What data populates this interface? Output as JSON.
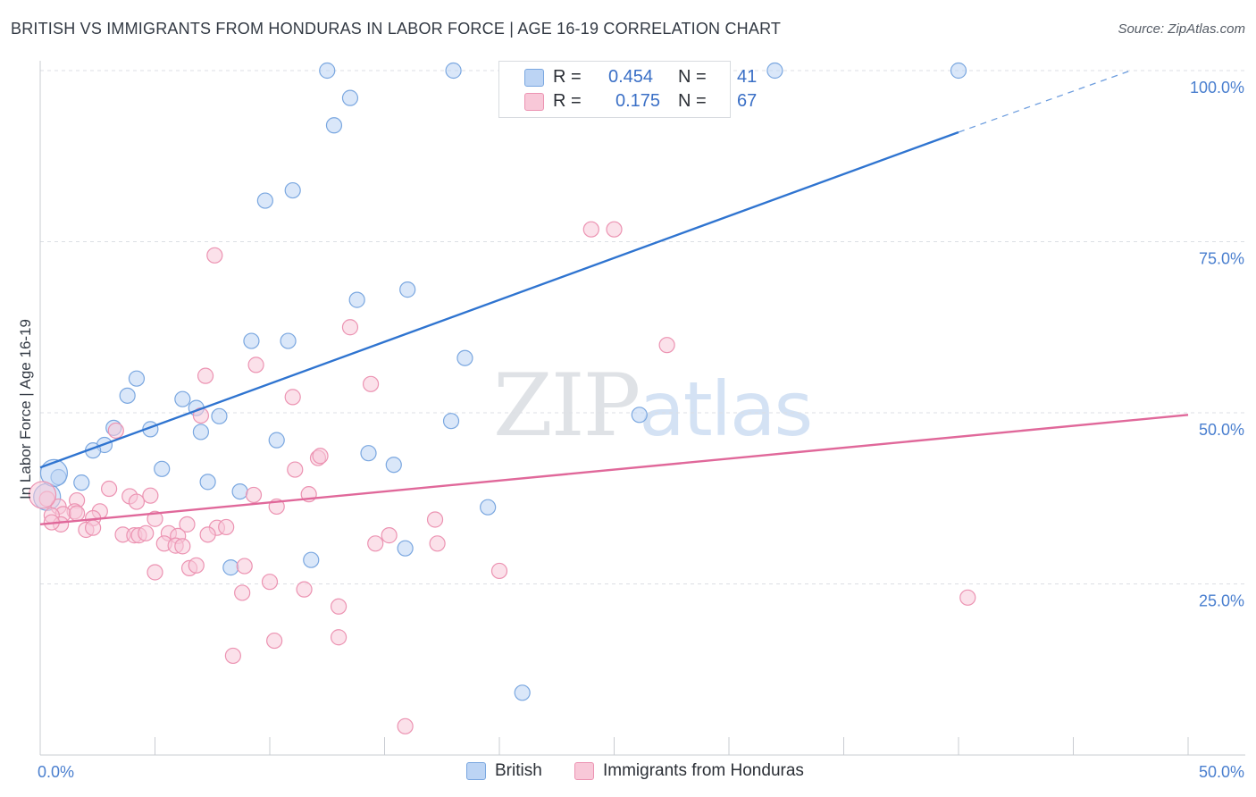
{
  "title": "BRITISH VS IMMIGRANTS FROM HONDURAS IN LABOR FORCE | AGE 16-19 CORRELATION CHART",
  "source": "Source: ZipAtlas.com",
  "watermark": {
    "part1": "ZIP",
    "part2": "atlas"
  },
  "legend": {
    "r_label": "R =",
    "n_label": "N =",
    "rows": [
      {
        "r": "0.454",
        "n": "41"
      },
      {
        "r": "0.175",
        "n": "67"
      }
    ]
  },
  "colors": {
    "british_fill": "#bcd4f4",
    "british_stroke": "#7aa7e0",
    "british_line": "#2f74d0",
    "honduras_fill": "#f8c8d8",
    "honduras_stroke": "#ec93b2",
    "honduras_line": "#e0689a",
    "grid": "#dcdfe4",
    "tick_label": "#4a7fcf"
  },
  "chart_data": {
    "type": "scatter",
    "xlabel": "",
    "ylabel": "In Labor Force | Age 16-19",
    "xlim": [
      0,
      50
    ],
    "ylim": [
      0,
      100
    ],
    "x_tick_labels": [
      "0.0%",
      "50.0%"
    ],
    "y_ticks": [
      {
        "value": 25,
        "label": "25.0%"
      },
      {
        "value": 50,
        "label": "50.0%"
      },
      {
        "value": 75,
        "label": "75.0%"
      },
      {
        "value": 100,
        "label": "100.0%"
      }
    ],
    "grid": true,
    "legend_position": "top-center",
    "series": [
      {
        "name": "British",
        "r": 0.454,
        "n": 41,
        "trend": {
          "x0": 0,
          "y0": 42,
          "x1": 40,
          "y1": 91,
          "dashed_to_x": 47.5,
          "dashed_to_y": 100
        },
        "points": [
          [
            12.5,
            100
          ],
          [
            18,
            100
          ],
          [
            24.5,
            100
          ],
          [
            32,
            100
          ],
          [
            40,
            100
          ],
          [
            13.5,
            96
          ],
          [
            12.8,
            92
          ],
          [
            11,
            82.5
          ],
          [
            9.8,
            81
          ],
          [
            13.8,
            66.5
          ],
          [
            16,
            68
          ],
          [
            9.2,
            60.5
          ],
          [
            10.8,
            60.5
          ],
          [
            18.5,
            58
          ],
          [
            4.2,
            55
          ],
          [
            3.8,
            52.5
          ],
          [
            6.2,
            52
          ],
          [
            6.8,
            50.7
          ],
          [
            7.8,
            49.5
          ],
          [
            17.9,
            48.8
          ],
          [
            26.1,
            49.7
          ],
          [
            3.2,
            47.8
          ],
          [
            4.8,
            47.6
          ],
          [
            7.0,
            47.2
          ],
          [
            2.8,
            45.3
          ],
          [
            2.3,
            44.5
          ],
          [
            10.3,
            46
          ],
          [
            14.3,
            44.1
          ],
          [
            15.4,
            42.4
          ],
          [
            5.3,
            41.8
          ],
          [
            1.8,
            39.8
          ],
          [
            0.8,
            40.6
          ],
          [
            7.3,
            39.9
          ],
          [
            8.7,
            38.5
          ],
          [
            19.5,
            36.2
          ],
          [
            15.9,
            30.2
          ],
          [
            11.8,
            28.5
          ],
          [
            8.3,
            27.4
          ],
          [
            21.0,
            9.1
          ],
          [
            0.3,
            37.7
          ],
          [
            0.6,
            41.2
          ]
        ]
      },
      {
        "name": "Immigrants from Honduras",
        "r": 0.175,
        "n": 67,
        "trend": {
          "x0": 0,
          "y0": 33.7,
          "x1": 50,
          "y1": 49.7
        },
        "points": [
          [
            24,
            76.8
          ],
          [
            25,
            76.8
          ],
          [
            7.6,
            73
          ],
          [
            13.5,
            62.5
          ],
          [
            27.3,
            59.9
          ],
          [
            9.4,
            57
          ],
          [
            7.2,
            55.4
          ],
          [
            14.4,
            54.2
          ],
          [
            11,
            52.3
          ],
          [
            7,
            49.6
          ],
          [
            3.3,
            47.4
          ],
          [
            12.1,
            43.4
          ],
          [
            12.2,
            43.7
          ],
          [
            11.1,
            41.7
          ],
          [
            3.0,
            38.9
          ],
          [
            3.9,
            37.8
          ],
          [
            4.8,
            37.9
          ],
          [
            11.7,
            38.1
          ],
          [
            9.3,
            38.0
          ],
          [
            0.3,
            37.4
          ],
          [
            1.6,
            37.2
          ],
          [
            4.2,
            37.0
          ],
          [
            0.8,
            36.3
          ],
          [
            1.5,
            35.6
          ],
          [
            2.6,
            35.6
          ],
          [
            1.0,
            35.2
          ],
          [
            1.6,
            35.3
          ],
          [
            0.5,
            35.0
          ],
          [
            2.3,
            34.6
          ],
          [
            5.0,
            34.5
          ],
          [
            10.3,
            36.3
          ],
          [
            17.2,
            34.4
          ],
          [
            6.4,
            33.7
          ],
          [
            0.9,
            33.7
          ],
          [
            0.5,
            34.0
          ],
          [
            2.0,
            32.9
          ],
          [
            2.3,
            33.2
          ],
          [
            7.7,
            33.2
          ],
          [
            8.1,
            33.3
          ],
          [
            3.6,
            32.2
          ],
          [
            4.1,
            32.1
          ],
          [
            4.3,
            32.1
          ],
          [
            5.6,
            32.4
          ],
          [
            7.3,
            32.2
          ],
          [
            4.6,
            32.4
          ],
          [
            6.0,
            32.0
          ],
          [
            15.2,
            32.1
          ],
          [
            5.4,
            30.9
          ],
          [
            5.9,
            30.6
          ],
          [
            6.2,
            30.5
          ],
          [
            14.6,
            30.9
          ],
          [
            17.3,
            30.9
          ],
          [
            6.5,
            27.3
          ],
          [
            6.8,
            27.7
          ],
          [
            8.9,
            27.6
          ],
          [
            5.0,
            26.7
          ],
          [
            20.0,
            26.9
          ],
          [
            10.0,
            25.3
          ],
          [
            11.5,
            24.2
          ],
          [
            8.8,
            23.7
          ],
          [
            13.0,
            21.7
          ],
          [
            40.4,
            23.0
          ],
          [
            10.2,
            16.7
          ],
          [
            13.0,
            17.2
          ],
          [
            8.4,
            14.5
          ],
          [
            15.9,
            4.2
          ],
          [
            0.1,
            38.0
          ]
        ]
      }
    ]
  }
}
